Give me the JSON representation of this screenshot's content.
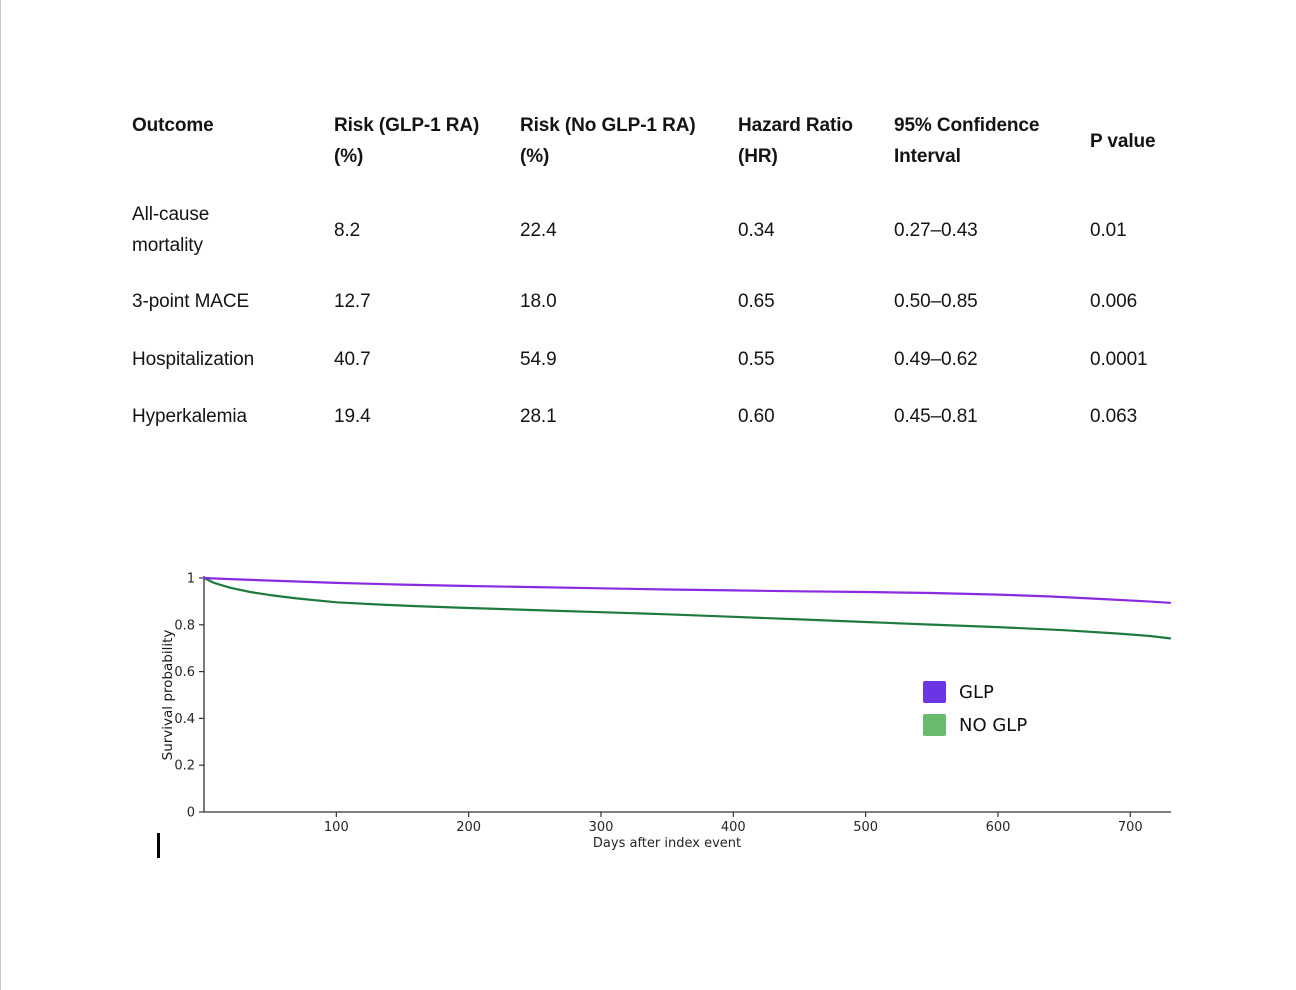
{
  "table": {
    "headers": [
      "Outcome",
      "Risk (GLP-1 RA) (%)",
      "Risk (No GLP-1 RA) (%)",
      "Hazard Ratio (HR)",
      "95% Confidence Interval",
      "P value"
    ],
    "rows": [
      {
        "outcome": "All-cause mortality",
        "risk_glp": "8.2",
        "risk_noglp": "22.4",
        "hr": "0.34",
        "ci": "0.27–0.43",
        "p": "0.01"
      },
      {
        "outcome": "3-point MACE",
        "risk_glp": "12.7",
        "risk_noglp": "18.0",
        "hr": "0.65",
        "ci": "0.50–0.85",
        "p": "0.006"
      },
      {
        "outcome": "Hospitalization",
        "risk_glp": "40.7",
        "risk_noglp": "54.9",
        "hr": "0.55",
        "ci": "0.49–0.62",
        "p": "0.0001"
      },
      {
        "outcome": "Hyperkalemia",
        "risk_glp": "19.4",
        "risk_noglp": "28.1",
        "hr": "0.60",
        "ci": "0.45–0.81",
        "p": "0.063"
      }
    ]
  },
  "chart_data": {
    "type": "line",
    "subtype": "kaplan-meier-survival",
    "title": "",
    "xlabel": "Days after index event",
    "ylabel": "Survival probability",
    "xlim": [
      0,
      731
    ],
    "ylim": [
      0,
      1
    ],
    "xticks": [
      100,
      200,
      300,
      400,
      500,
      600,
      700
    ],
    "yticks": [
      0,
      0.2,
      0.4,
      0.6,
      0.8,
      1
    ],
    "ytick_labels": [
      "0",
      "0.2",
      "0.4",
      "0.6",
      "0.8",
      "1"
    ],
    "grid": false,
    "legend_position": "center-right",
    "axis_color": "#333333",
    "series": [
      {
        "name": "GLP",
        "line_color": "#8A2BE2",
        "swatch_color": "#6C35E4",
        "points": [
          [
            0,
            1.0
          ],
          [
            15,
            0.996
          ],
          [
            40,
            0.991
          ],
          [
            70,
            0.985
          ],
          [
            100,
            0.979
          ],
          [
            150,
            0.972
          ],
          [
            200,
            0.966
          ],
          [
            250,
            0.961
          ],
          [
            300,
            0.956
          ],
          [
            350,
            0.951
          ],
          [
            400,
            0.947
          ],
          [
            450,
            0.943
          ],
          [
            500,
            0.94
          ],
          [
            550,
            0.936
          ],
          [
            600,
            0.929
          ],
          [
            640,
            0.921
          ],
          [
            680,
            0.91
          ],
          [
            710,
            0.901
          ],
          [
            730,
            0.894
          ]
        ]
      },
      {
        "name": "NO GLP",
        "line_color": "#1E7A3E",
        "swatch_color": "#68BB6C",
        "points": [
          [
            0,
            1.0
          ],
          [
            8,
            0.978
          ],
          [
            20,
            0.958
          ],
          [
            35,
            0.94
          ],
          [
            50,
            0.927
          ],
          [
            70,
            0.913
          ],
          [
            100,
            0.896
          ],
          [
            130,
            0.887
          ],
          [
            160,
            0.88
          ],
          [
            200,
            0.872
          ],
          [
            250,
            0.863
          ],
          [
            300,
            0.854
          ],
          [
            350,
            0.845
          ],
          [
            400,
            0.834
          ],
          [
            450,
            0.823
          ],
          [
            500,
            0.812
          ],
          [
            550,
            0.801
          ],
          [
            600,
            0.79
          ],
          [
            650,
            0.777
          ],
          [
            690,
            0.763
          ],
          [
            715,
            0.752
          ],
          [
            730,
            0.742
          ]
        ]
      }
    ]
  }
}
